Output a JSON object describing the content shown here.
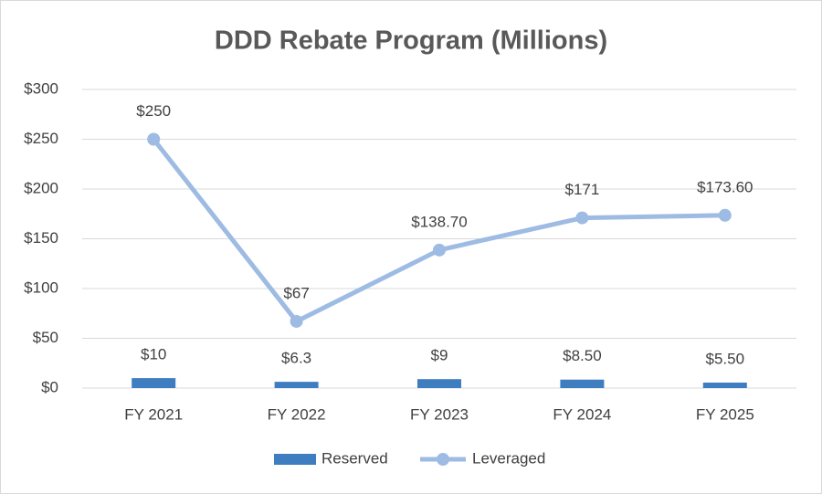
{
  "chart_data": {
    "type": "combo",
    "title": "DDD Rebate Program (Millions)",
    "categories": [
      "FY 2021",
      "FY 2022",
      "FY 2023",
      "FY 2024",
      "FY 2025"
    ],
    "series": [
      {
        "name": "Reserved",
        "type": "bar",
        "color": "#3f7dc1",
        "values": [
          10,
          6.3,
          9,
          8.5,
          5.5
        ],
        "value_labels": [
          "$10",
          "$6.3",
          "$9",
          "$8.50",
          "$5.50"
        ]
      },
      {
        "name": "Leveraged",
        "type": "line",
        "color": "#9dbbe3",
        "values": [
          250,
          67,
          138.7,
          171,
          173.6
        ],
        "value_labels": [
          "$250",
          "$67",
          "$138.70",
          "$171",
          "$173.60"
        ]
      }
    ],
    "ylim": [
      0,
      300
    ],
    "yticks": [
      {
        "value": 0,
        "label": "$0"
      },
      {
        "value": 50,
        "label": "$50"
      },
      {
        "value": 100,
        "label": "$100"
      },
      {
        "value": 150,
        "label": "$150"
      },
      {
        "value": 200,
        "label": "$200"
      },
      {
        "value": 250,
        "label": "$250"
      },
      {
        "value": 300,
        "label": "$300"
      }
    ],
    "grid": true,
    "legend": "bottom"
  }
}
